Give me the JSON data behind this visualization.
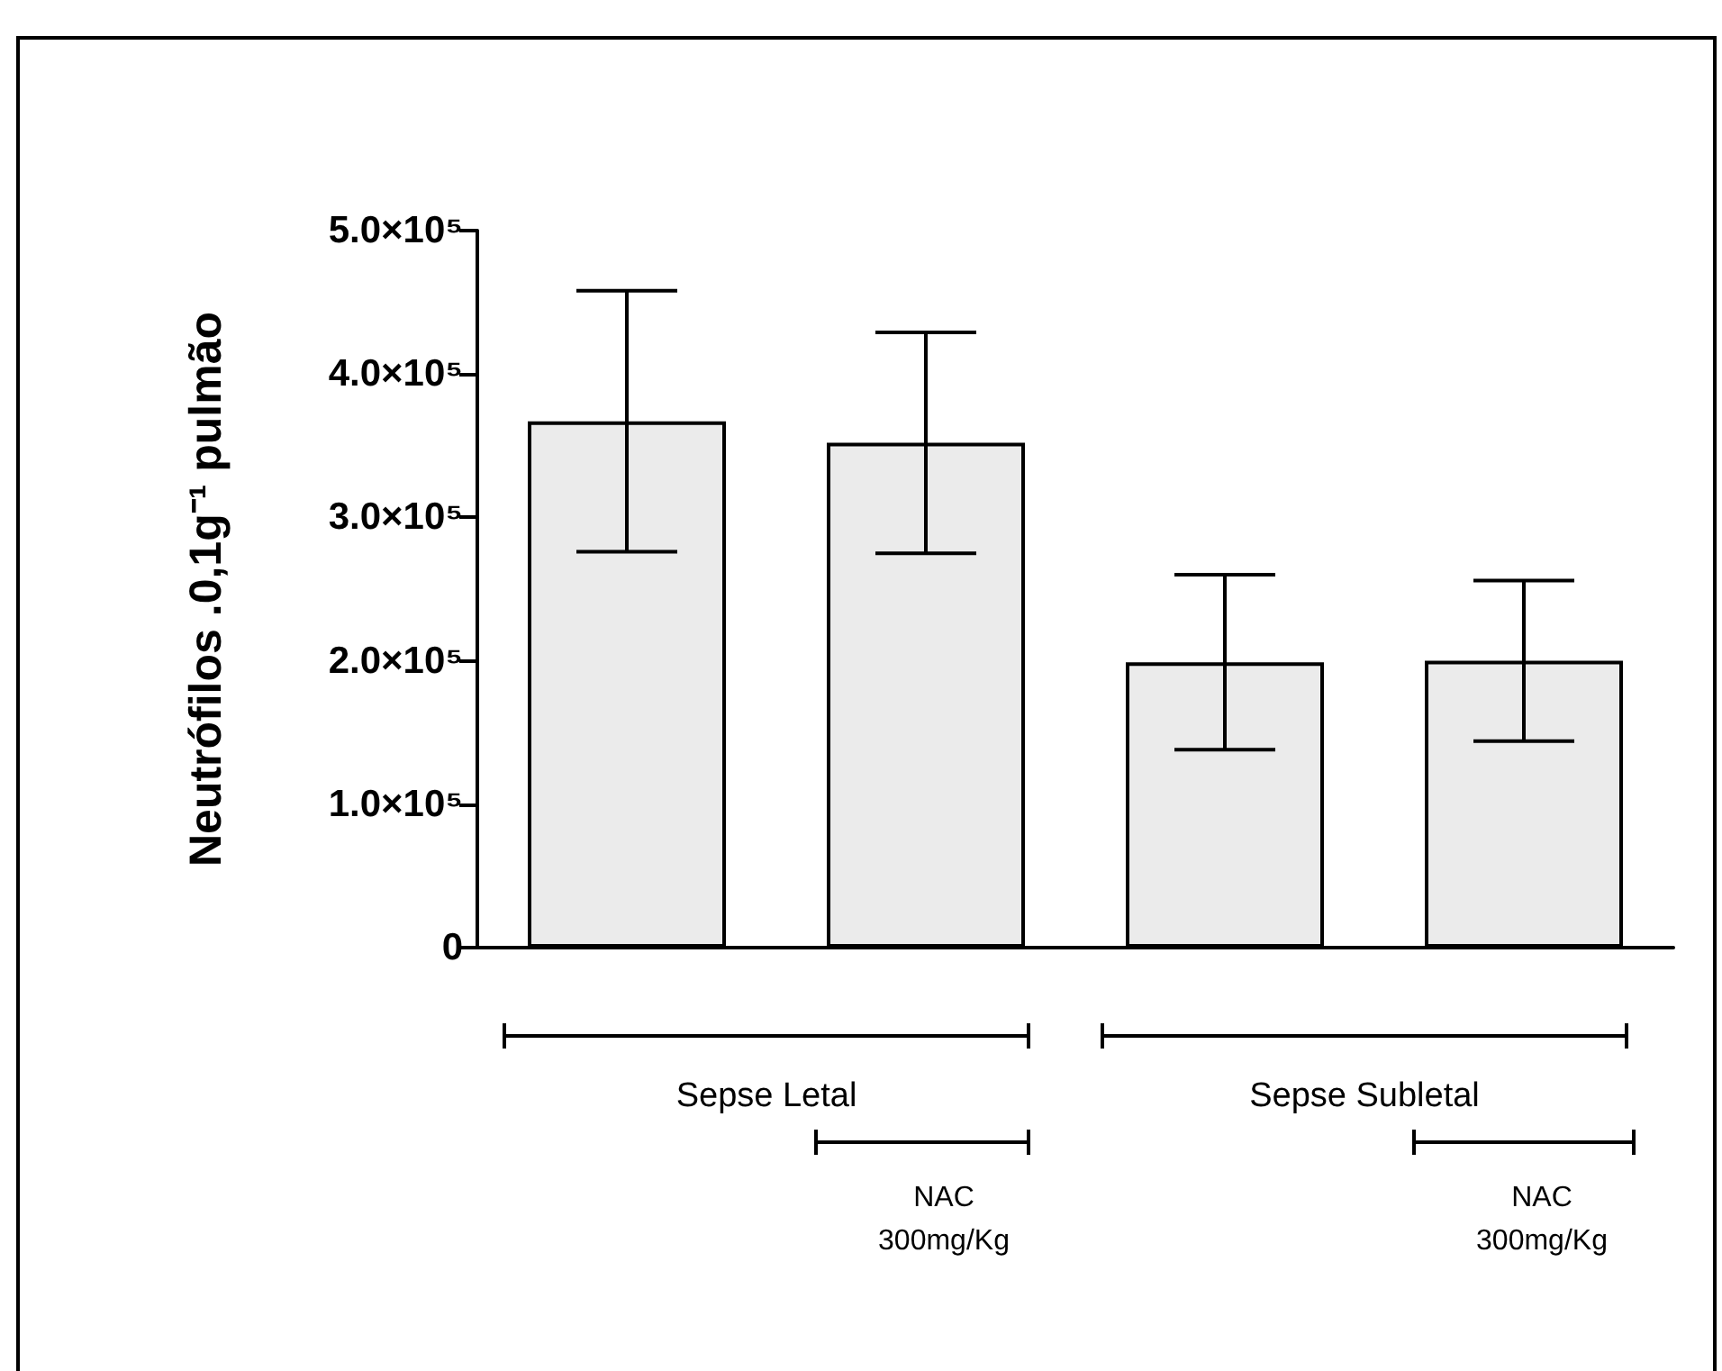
{
  "chart_data": {
    "type": "bar",
    "ylabel": "Neutrófilos .0,1g⁻¹ pulmão",
    "categories": [
      null,
      null,
      null,
      null
    ],
    "values": [
      367000,
      352000,
      199000,
      200000
    ],
    "errors": [
      91000,
      77000,
      61000,
      56000
    ],
    "color": "#ebebeb",
    "ylim": [
      0,
      500000
    ],
    "yticks": [
      0,
      {
        "value": 100000,
        "label": "1.0×10⁵"
      },
      {
        "value": 200000,
        "label": "2.0×10⁵"
      },
      {
        "value": 300000,
        "label": "3.0×10⁵"
      },
      {
        "value": 400000,
        "label": "4.0×10⁵"
      },
      {
        "value": 500000,
        "label": "5.0×10⁵"
      }
    ],
    "grid": false,
    "annotations": [
      "Sepse Letal",
      "NAC\n300mg/Kg",
      "Sepse Subletal",
      "NAC\n300mg/Kg"
    ]
  }
}
